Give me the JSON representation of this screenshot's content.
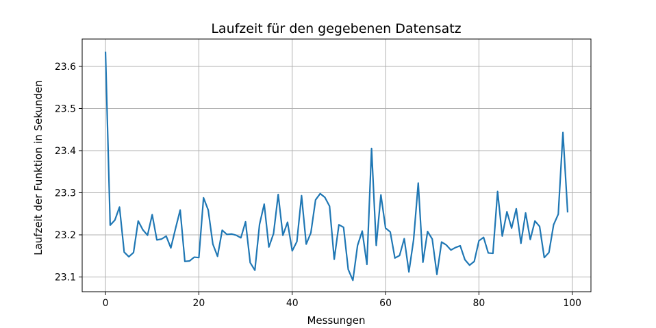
{
  "chart_data": {
    "type": "line",
    "title": "Laufzeit für den gegebenen Datensatz",
    "xlabel": "Messungen",
    "ylabel": "Laufzeit der Funktion in Sekunden",
    "xlim": [
      -5,
      104
    ],
    "ylim": [
      23.065,
      23.665
    ],
    "xticks": [
      0,
      20,
      40,
      60,
      80,
      100
    ],
    "yticks": [
      23.1,
      23.2,
      23.3,
      23.4,
      23.5,
      23.6
    ],
    "ytick_labels": [
      "23.1",
      "23.2",
      "23.3",
      "23.4",
      "23.5",
      "23.6"
    ],
    "grid": true,
    "color": "#1f77b4",
    "series": [
      {
        "x": [
          0,
          1,
          2,
          3,
          4,
          5,
          6,
          7,
          8,
          9,
          10,
          11,
          12,
          13,
          14,
          15,
          16,
          17,
          18,
          19,
          20,
          21,
          22,
          23,
          24,
          25,
          26,
          27,
          28,
          29,
          30,
          31,
          32,
          33,
          34,
          35,
          36,
          37,
          38,
          39,
          40,
          41,
          42,
          43,
          44,
          45,
          46,
          47,
          48,
          49,
          50,
          51,
          52,
          53,
          54,
          55,
          56,
          57,
          58,
          59,
          60,
          61,
          62,
          63,
          64,
          65,
          66,
          67,
          68,
          69,
          70,
          71,
          72,
          73,
          74,
          75,
          76,
          77,
          78,
          79,
          80,
          81,
          82,
          83,
          84,
          85,
          86,
          87,
          88,
          89,
          90,
          91,
          92,
          93,
          94,
          95,
          96,
          97,
          98,
          99
        ],
        "values": [
          23.633,
          23.223,
          23.235,
          23.266,
          23.159,
          23.148,
          23.158,
          23.233,
          23.212,
          23.199,
          23.248,
          23.188,
          23.19,
          23.197,
          23.169,
          23.215,
          23.259,
          23.137,
          23.138,
          23.147,
          23.146,
          23.288,
          23.259,
          23.178,
          23.149,
          23.211,
          23.201,
          23.202,
          23.199,
          23.193,
          23.231,
          23.134,
          23.116,
          23.225,
          23.273,
          23.171,
          23.203,
          23.296,
          23.199,
          23.23,
          23.162,
          23.184,
          23.293,
          23.178,
          23.205,
          23.283,
          23.298,
          23.289,
          23.268,
          23.142,
          23.224,
          23.218,
          23.118,
          23.092,
          23.175,
          23.209,
          23.13,
          23.405,
          23.175,
          23.295,
          23.216,
          23.207,
          23.145,
          23.151,
          23.191,
          23.112,
          23.188,
          23.323,
          23.135,
          23.208,
          23.19,
          23.106,
          23.183,
          23.176,
          23.164,
          23.17,
          23.174,
          23.141,
          23.128,
          23.137,
          23.186,
          23.194,
          23.157,
          23.156,
          23.303,
          23.197,
          23.255,
          23.216,
          23.262,
          23.18,
          23.252,
          23.189,
          23.233,
          23.22,
          23.146,
          23.158,
          23.224,
          23.249,
          23.443,
          23.255
        ]
      }
    ]
  }
}
